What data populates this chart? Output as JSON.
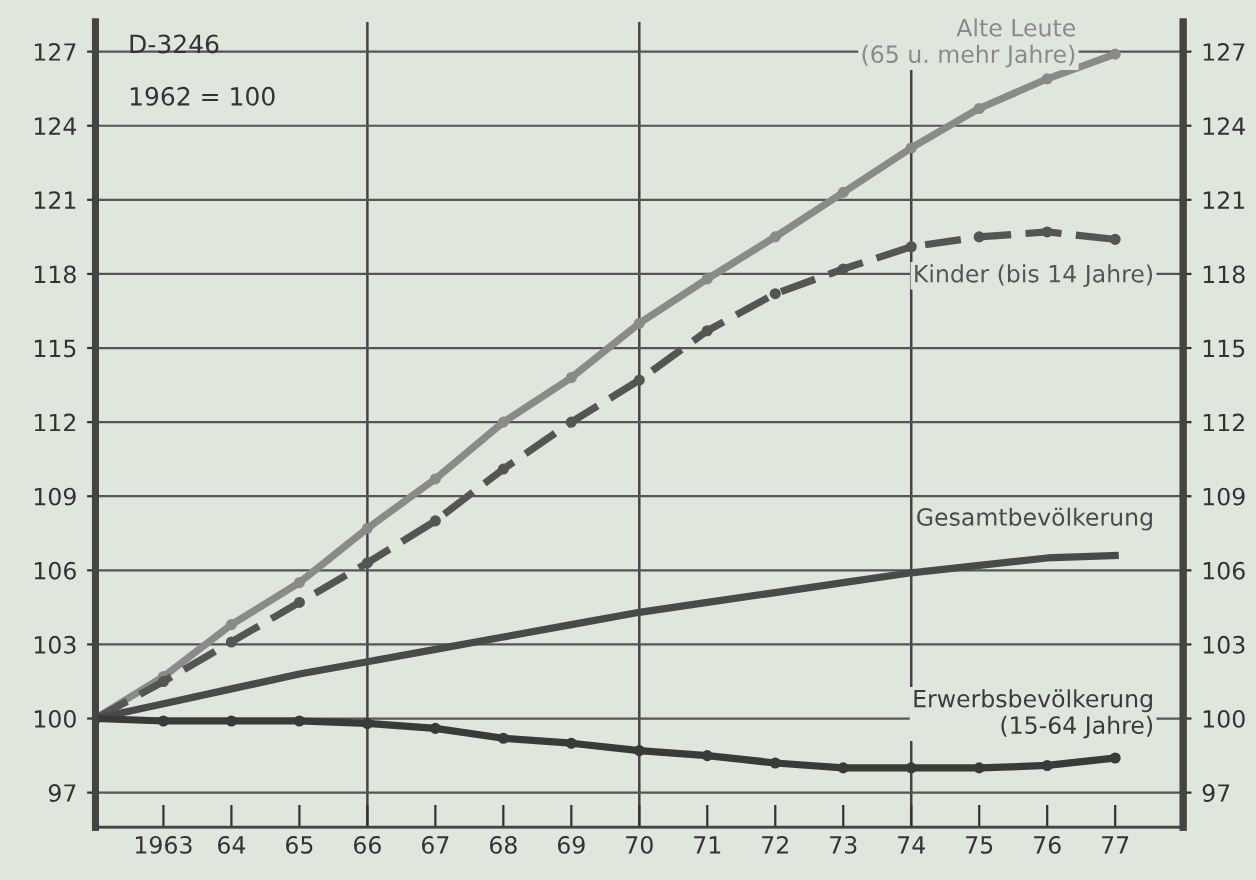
{
  "chart_data": {
    "type": "line",
    "annotations": [
      "D-3246",
      "1962 = 100"
    ],
    "x": [
      1962,
      1963,
      1964,
      1965,
      1966,
      1967,
      1968,
      1969,
      1970,
      1971,
      1972,
      1973,
      1974,
      1975,
      1976,
      1977
    ],
    "series": [
      {
        "name": "Alte Leute\n(65 u. mehr Jahre)",
        "color": "#8a8a8a",
        "marker": "circle",
        "line_style": "solid",
        "values": [
          100,
          101.7,
          103.8,
          105.5,
          107.7,
          109.7,
          112.0,
          113.8,
          116.0,
          117.8,
          119.5,
          121.3,
          123.1,
          124.7,
          125.9,
          126.9
        ]
      },
      {
        "name": "Kinder (bis 14 Jahre)",
        "color": "#555555",
        "marker": "circle",
        "line_style": "dashed",
        "values": [
          100,
          101.5,
          103.1,
          104.7,
          106.3,
          108.0,
          110.1,
          112.0,
          113.7,
          115.7,
          117.2,
          118.2,
          119.1,
          119.5,
          119.7,
          119.4
        ]
      },
      {
        "name": "Gesamtbevölkerung",
        "color": "#4a4a4a",
        "marker": "none",
        "line_style": "solid",
        "values": [
          100,
          100.6,
          101.2,
          101.8,
          102.3,
          102.8,
          103.3,
          103.8,
          104.3,
          104.7,
          105.1,
          105.5,
          105.9,
          106.2,
          106.5,
          106.6
        ]
      },
      {
        "name": "Erwerbsbevölkerung\n(15-64 Jahre)",
        "color": "#3a3a3a",
        "marker": "circle",
        "line_style": "solid",
        "values": [
          100,
          99.9,
          99.9,
          99.9,
          99.8,
          99.6,
          99.2,
          99.0,
          98.7,
          98.5,
          98.2,
          98.0,
          98.0,
          98.0,
          98.1,
          98.4
        ]
      }
    ],
    "xlim": [
      1962,
      1978
    ],
    "xticks": [
      {
        "value": 1963,
        "label": "1963"
      },
      {
        "value": 1964,
        "label": "64"
      },
      {
        "value": 1965,
        "label": "65"
      },
      {
        "value": 1966,
        "label": "66"
      },
      {
        "value": 1967,
        "label": "67"
      },
      {
        "value": 1968,
        "label": "68"
      },
      {
        "value": 1969,
        "label": "69"
      },
      {
        "value": 1970,
        "label": "70"
      },
      {
        "value": 1971,
        "label": "71"
      },
      {
        "value": 1972,
        "label": "72"
      },
      {
        "value": 1973,
        "label": "73"
      },
      {
        "value": 1974,
        "label": "74"
      },
      {
        "value": 1975,
        "label": "75"
      },
      {
        "value": 1976,
        "label": "76"
      },
      {
        "value": 1977,
        "label": "77"
      }
    ],
    "ylim": [
      95.6,
      128.2
    ],
    "yticks": [
      97,
      100,
      103,
      106,
      109,
      112,
      115,
      118,
      121,
      124,
      127
    ],
    "y2lim": [
      95.6,
      128.2
    ],
    "y2ticks": [
      97,
      100,
      103,
      106,
      109,
      112,
      115,
      118,
      121,
      124,
      127
    ],
    "ref_lines": [
      {
        "axis": "x",
        "value": 1966,
        "color": "#444444"
      },
      {
        "axis": "x",
        "value": 1970,
        "color": "#444444"
      },
      {
        "axis": "x",
        "value": 1974,
        "color": "#444444"
      }
    ],
    "grid": "y"
  }
}
